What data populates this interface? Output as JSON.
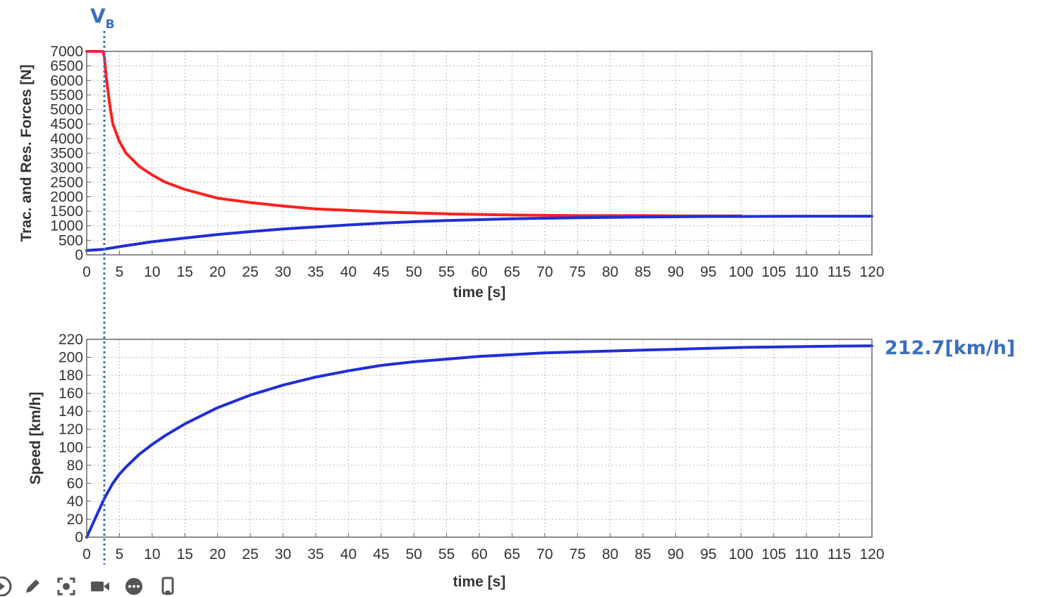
{
  "annotations": {
    "vb_main": "V",
    "vb_sub": "B",
    "final_speed": "212.7[km/h]"
  },
  "colors": {
    "traction": "#ff1f1f",
    "resistance": "#1e2fd6",
    "speed": "#1e2fd6",
    "annotation": "#3a6ebf"
  },
  "toolbar": {
    "icons": [
      "play-icon",
      "pen-icon",
      "screenshot-icon",
      "video-camera-icon",
      "more-icon",
      "mobile-device-icon"
    ]
  },
  "chart_data": [
    {
      "type": "line",
      "title": "",
      "xlabel": "time [s]",
      "ylabel": "Trac. and Res. Forces [N]",
      "xlim": [
        0,
        120
      ],
      "ylim": [
        0,
        7000
      ],
      "xticks": [
        "0",
        "5",
        "10",
        "15",
        "20",
        "25",
        "30",
        "35",
        "40",
        "45",
        "50",
        "55",
        "60",
        "65",
        "70",
        "75",
        "80",
        "85",
        "90",
        "95",
        "100",
        "105",
        "110",
        "115",
        "120"
      ],
      "yticks": [
        "0",
        "500",
        "1000",
        "1500",
        "2000",
        "2500",
        "3000",
        "3500",
        "4000",
        "4500",
        "5000",
        "5500",
        "6000",
        "6500",
        "7000"
      ],
      "grid": true,
      "series": [
        {
          "color": "#ff1f1f",
          "x": [
            0,
            2.5,
            2.7,
            3,
            3.5,
            4,
            5,
            6,
            8,
            10,
            12,
            15,
            20,
            25,
            30,
            35,
            40,
            45,
            50,
            55,
            60,
            65,
            70,
            75,
            80,
            85,
            90,
            95,
            100
          ],
          "y": [
            7000,
            7000,
            6800,
            6100,
            5200,
            4500,
            3900,
            3500,
            3050,
            2750,
            2500,
            2250,
            1950,
            1800,
            1680,
            1580,
            1530,
            1480,
            1440,
            1410,
            1390,
            1370,
            1360,
            1350,
            1350,
            1350,
            1340,
            1340,
            1340
          ]
        },
        {
          "color": "#1e2fd6",
          "x": [
            0,
            2.5,
            5,
            10,
            15,
            20,
            25,
            30,
            35,
            40,
            45,
            50,
            55,
            60,
            65,
            70,
            75,
            80,
            85,
            90,
            95,
            100,
            105,
            110,
            115,
            120
          ],
          "y": [
            150,
            190,
            280,
            450,
            580,
            700,
            800,
            890,
            960,
            1030,
            1090,
            1140,
            1180,
            1210,
            1240,
            1260,
            1280,
            1290,
            1300,
            1310,
            1320,
            1320,
            1325,
            1330,
            1330,
            1330
          ]
        }
      ]
    },
    {
      "type": "line",
      "title": "",
      "xlabel": "time [s]",
      "ylabel": "Speed [km/h]",
      "xlim": [
        0,
        120
      ],
      "ylim": [
        0,
        220
      ],
      "xticks": [
        "0",
        "5",
        "10",
        "15",
        "20",
        "25",
        "30",
        "35",
        "40",
        "45",
        "50",
        "55",
        "60",
        "65",
        "70",
        "75",
        "80",
        "85",
        "90",
        "95",
        "100",
        "105",
        "110",
        "115",
        "120"
      ],
      "yticks": [
        "0",
        "20",
        "40",
        "60",
        "80",
        "100",
        "120",
        "140",
        "160",
        "180",
        "200",
        "220"
      ],
      "grid": true,
      "series": [
        {
          "color": "#1e2fd6",
          "x": [
            0,
            1,
            2,
            2.5,
            3,
            4,
            5,
            6,
            8,
            10,
            12,
            15,
            20,
            25,
            30,
            35,
            40,
            45,
            50,
            55,
            60,
            65,
            70,
            75,
            80,
            85,
            90,
            95,
            100,
            105,
            110,
            115,
            120
          ],
          "y": [
            0,
            16,
            32,
            40,
            47,
            60,
            70,
            78,
            92,
            103,
            113,
            126,
            144,
            158,
            169,
            178,
            185,
            191,
            195,
            198,
            201,
            203,
            205,
            206,
            207,
            208,
            209,
            210,
            211,
            211.5,
            212,
            212.5,
            212.7
          ]
        }
      ]
    }
  ]
}
